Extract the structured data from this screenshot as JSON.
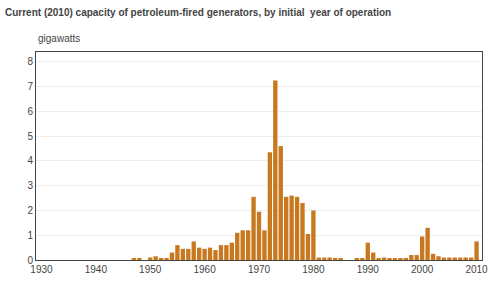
{
  "chart_data": {
    "type": "bar",
    "title": "Current (2010) capacity of petroleum-fired generators, by initial  year of operation",
    "ylabel": "gigawatts",
    "x": [
      1930,
      1931,
      1932,
      1933,
      1934,
      1935,
      1936,
      1937,
      1938,
      1939,
      1940,
      1941,
      1942,
      1943,
      1944,
      1945,
      1946,
      1947,
      1948,
      1949,
      1950,
      1951,
      1952,
      1953,
      1954,
      1955,
      1956,
      1957,
      1958,
      1959,
      1960,
      1961,
      1962,
      1963,
      1964,
      1965,
      1966,
      1967,
      1968,
      1969,
      1970,
      1971,
      1972,
      1973,
      1974,
      1975,
      1976,
      1977,
      1978,
      1979,
      1980,
      1981,
      1982,
      1983,
      1984,
      1985,
      1986,
      1987,
      1988,
      1989,
      1990,
      1991,
      1992,
      1993,
      1994,
      1995,
      1996,
      1997,
      1998,
      1999,
      2000,
      2001,
      2002,
      2003,
      2004,
      2005,
      2006,
      2007,
      2008,
      2009,
      2010
    ],
    "values": [
      0.0,
      0.0,
      0.0,
      0.0,
      0.0,
      0.0,
      0.0,
      0.0,
      0.0,
      0.0,
      0.0,
      0.0,
      0.0,
      0.0,
      0.0,
      0.0,
      0.0,
      0.05,
      0.05,
      0.0,
      0.1,
      0.15,
      0.05,
      0.05,
      0.3,
      0.6,
      0.45,
      0.45,
      0.75,
      0.5,
      0.45,
      0.5,
      0.4,
      0.6,
      0.6,
      0.7,
      1.1,
      1.2,
      1.2,
      2.55,
      1.95,
      1.2,
      4.35,
      7.25,
      4.6,
      2.55,
      2.6,
      2.55,
      2.3,
      1.05,
      2.0,
      0.1,
      0.1,
      0.1,
      0.05,
      0.05,
      0.0,
      0.0,
      0.05,
      0.05,
      0.7,
      0.3,
      0.05,
      0.1,
      0.05,
      0.05,
      0.05,
      0.05,
      0.2,
      0.2,
      0.95,
      1.3,
      0.25,
      0.15,
      0.1,
      0.1,
      0.1,
      0.1,
      0.1,
      0.1,
      0.75
    ],
    "color": "#C8781E",
    "xlim": [
      1929,
      2011
    ],
    "xticks": [
      1930,
      1940,
      1950,
      1960,
      1970,
      1980,
      1990,
      2000,
      2010
    ],
    "ylim": [
      0,
      8.4
    ],
    "yticks": [
      0,
      1,
      2,
      3,
      4,
      5,
      6,
      7,
      8
    ],
    "grid": true
  }
}
